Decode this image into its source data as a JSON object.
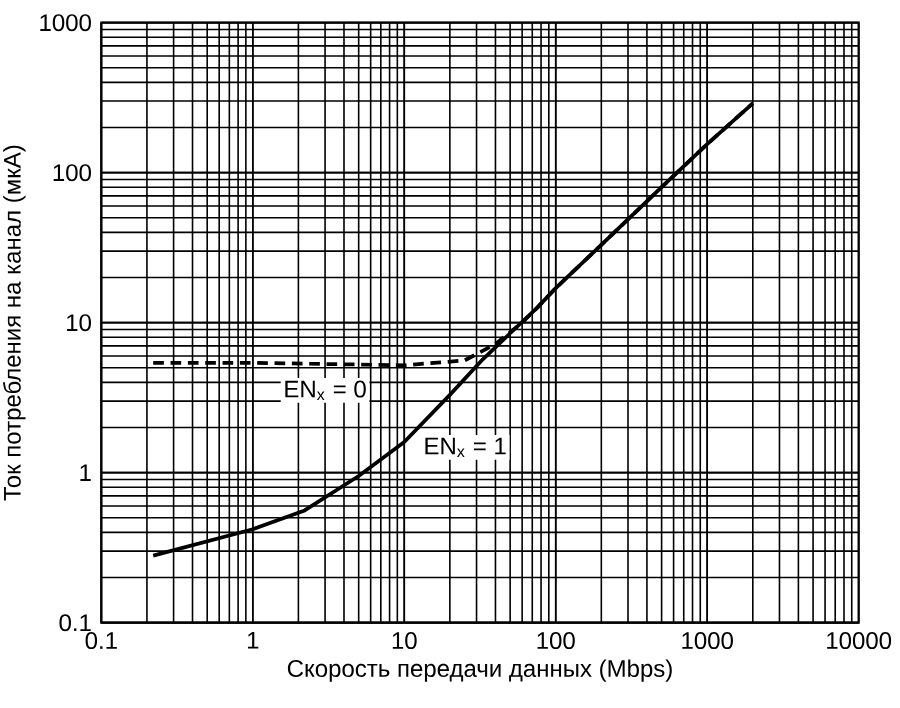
{
  "chart_data": {
    "type": "line",
    "xlabel": "Скорость передачи данных (Mbps)",
    "ylabel": "Ток потребления на канал (мкА)",
    "log": "xy",
    "grid": true,
    "xlim": [
      0.1,
      10000
    ],
    "ylim": [
      0.1,
      1000
    ],
    "xticks": [
      0.1,
      1,
      10,
      100,
      1000,
      10000
    ],
    "yticks": [
      0.1,
      1,
      10,
      100,
      1000
    ],
    "series": [
      {
        "name": "EN$_{x}$ = 1",
        "color": "#000000",
        "line_style": "solid",
        "x": [
          0.22,
          1,
          2.2,
          5,
          10,
          20,
          33,
          50,
          75,
          100,
          200,
          500,
          1000,
          2000
        ],
        "values": [
          0.28,
          0.42,
          0.56,
          0.95,
          1.6,
          3.3,
          5.7,
          8.5,
          12.5,
          17,
          33,
          80,
          155,
          290
        ]
      },
      {
        "name": "EN$_{x}$ = 0",
        "color": "#000000",
        "line_style": "dashed",
        "x": [
          0.22,
          1,
          3,
          10,
          25,
          40,
          60,
          75,
          100,
          200,
          500,
          1000,
          2000
        ],
        "values": [
          5.4,
          5.4,
          5.3,
          5.2,
          5.6,
          7.2,
          10,
          12.5,
          17,
          33,
          80,
          155,
          290
        ]
      }
    ]
  }
}
